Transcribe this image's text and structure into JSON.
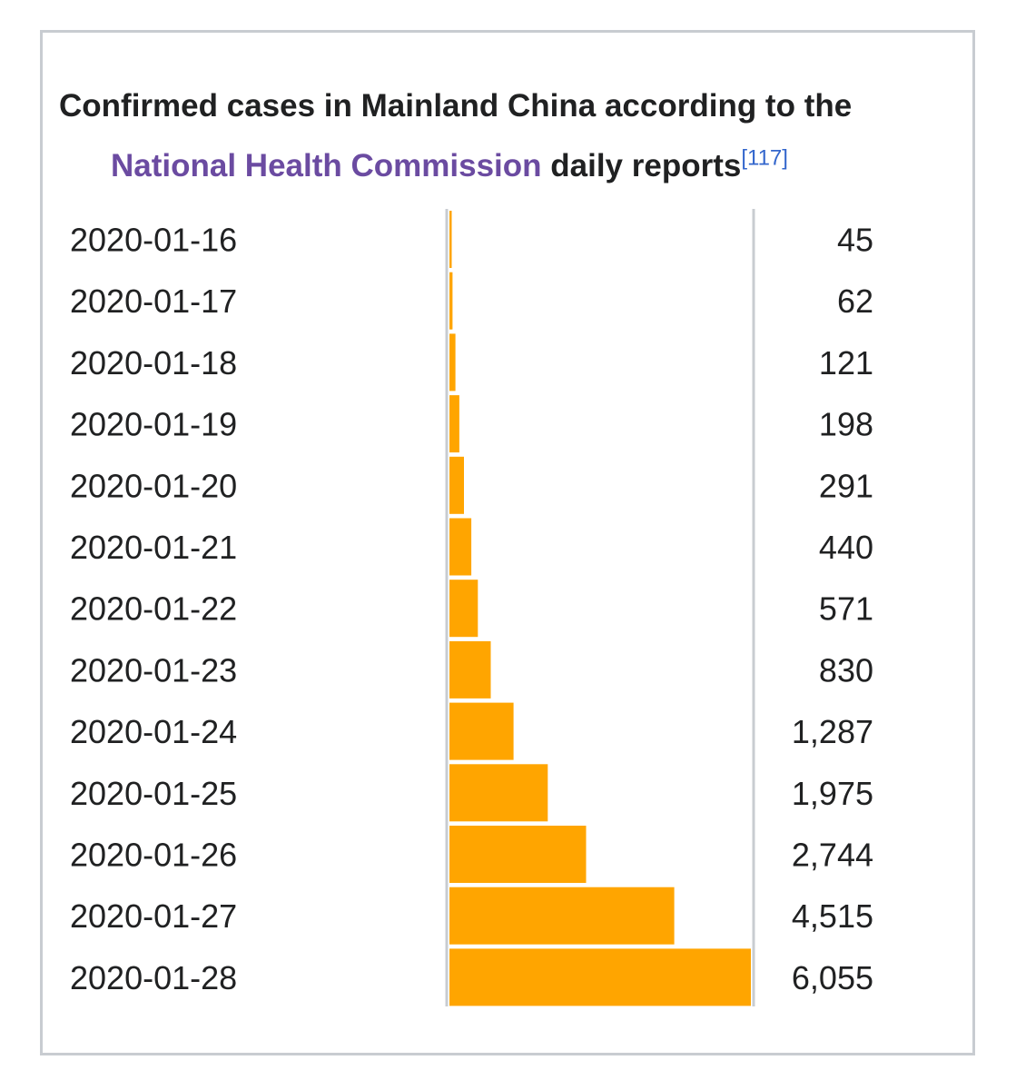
{
  "title": {
    "line1": "Confirmed cases in Mainland China according to the",
    "link_text": "National Health Commission",
    "after_link": " daily reports",
    "ref": "[117]"
  },
  "colors": {
    "bar": "#ffa500",
    "axis": "#c8ccd1",
    "link": "#6b4ba1",
    "ref": "#3366cc",
    "text": "#202122"
  },
  "chart_data": {
    "type": "bar",
    "orientation": "horizontal",
    "title": "Confirmed cases in Mainland China according to the National Health Commission daily reports[117]",
    "categories": [
      "2020-01-16",
      "2020-01-17",
      "2020-01-18",
      "2020-01-19",
      "2020-01-20",
      "2020-01-21",
      "2020-01-22",
      "2020-01-23",
      "2020-01-24",
      "2020-01-25",
      "2020-01-26",
      "2020-01-27",
      "2020-01-28"
    ],
    "values": [
      45,
      62,
      121,
      198,
      291,
      440,
      571,
      830,
      1287,
      1975,
      2744,
      4515,
      6055
    ],
    "value_labels": [
      "45",
      "62",
      "121",
      "198",
      "291",
      "440",
      "571",
      "830",
      "1,287",
      "1,975",
      "2,744",
      "4,515",
      "6,055"
    ],
    "xlim": [
      0,
      6055
    ],
    "xlabel": "",
    "ylabel": "",
    "grid": false,
    "legend": "none"
  }
}
